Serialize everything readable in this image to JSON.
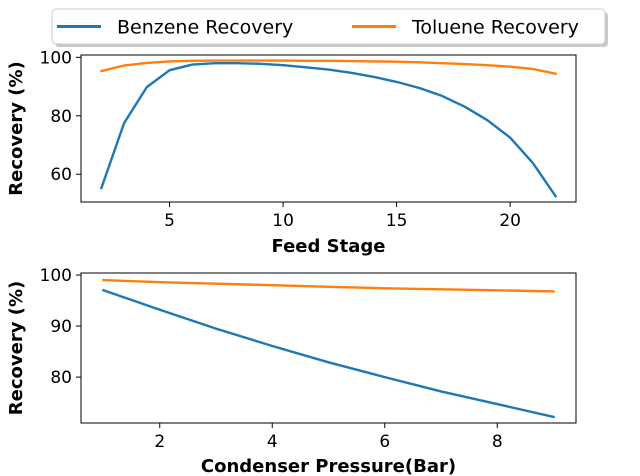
{
  "colors": {
    "benzene": "#1f77b4",
    "toluene": "#ff7f0e"
  },
  "legend": {
    "placement": "top-center",
    "entries": [
      {
        "name": "Benzene Recovery",
        "color": "#1f77b4"
      },
      {
        "name": "Toluene Recovery",
        "color": "#ff7f0e"
      }
    ]
  },
  "chart_data": [
    {
      "type": "line",
      "xlabel": "Feed Stage",
      "ylabel": "Recovery (%)",
      "xlim": [
        1.1,
        22.9
      ],
      "ylim": [
        50.5,
        100.8
      ],
      "xticks": [
        5,
        10,
        15,
        20
      ],
      "yticks": [
        60,
        80,
        100
      ],
      "grid": false,
      "series": [
        {
          "name": "Benzene Recovery",
          "color": "#1f77b4",
          "x": [
            2,
            3,
            4,
            5,
            6,
            7,
            8,
            9,
            10,
            11,
            12,
            13,
            14,
            15,
            16,
            17,
            18,
            19,
            20,
            21,
            22
          ],
          "y": [
            55.3,
            77.5,
            89.8,
            95.6,
            97.5,
            98.0,
            98.0,
            97.8,
            97.3,
            96.6,
            95.8,
            94.7,
            93.3,
            91.6,
            89.5,
            86.8,
            83.1,
            78.5,
            72.5,
            63.8,
            52.5
          ]
        },
        {
          "name": "Toluene Recovery",
          "color": "#ff7f0e",
          "x": [
            2,
            3,
            4,
            5,
            6,
            7,
            8,
            9,
            10,
            11,
            12,
            13,
            14,
            15,
            16,
            17,
            18,
            19,
            20,
            21,
            22
          ],
          "y": [
            95.3,
            97.2,
            98.1,
            98.6,
            98.8,
            98.9,
            98.9,
            98.9,
            98.9,
            98.8,
            98.8,
            98.7,
            98.6,
            98.5,
            98.3,
            98.0,
            97.7,
            97.3,
            96.8,
            96.0,
            94.4
          ]
        }
      ]
    },
    {
      "type": "line",
      "xlabel": "Condenser Pressure(Bar)",
      "ylabel": "Recovery (%)",
      "xlim": [
        0.6,
        9.4
      ],
      "ylim": [
        71.0,
        100.4
      ],
      "xticks": [
        2,
        4,
        6,
        8
      ],
      "yticks": [
        80,
        90,
        100
      ],
      "grid": false,
      "series": [
        {
          "name": "Benzene Recovery",
          "color": "#1f77b4",
          "x": [
            1,
            2,
            3,
            4,
            5,
            6,
            7,
            8,
            9
          ],
          "y": [
            97.0,
            93.2,
            89.5,
            86.1,
            82.9,
            80.0,
            77.2,
            74.7,
            72.2
          ]
        },
        {
          "name": "Toluene Recovery",
          "color": "#ff7f0e",
          "x": [
            1,
            2,
            3,
            4,
            5,
            6,
            7,
            8,
            9
          ],
          "y": [
            99.0,
            98.6,
            98.3,
            98.0,
            97.7,
            97.4,
            97.2,
            97.0,
            96.8
          ]
        }
      ]
    }
  ]
}
